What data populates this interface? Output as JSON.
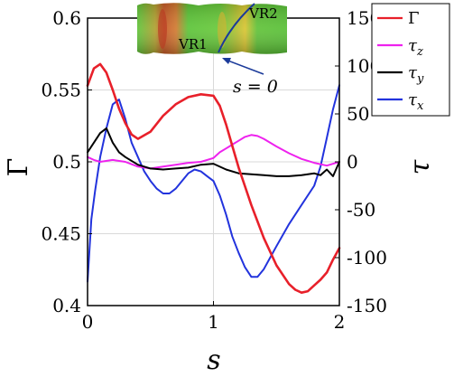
{
  "chart_data": {
    "type": "line",
    "xlabel": "s",
    "ylabel_left": "Γ",
    "ylabel_right": "τ",
    "xlim": [
      0,
      2
    ],
    "ylim_left": [
      0.4,
      0.6
    ],
    "ylim_right": [
      -150,
      150
    ],
    "grid": true,
    "x_ticks": [
      "0",
      "1",
      "2"
    ],
    "y_left_ticks": [
      "0.4",
      "0.45",
      "0.5",
      "0.55",
      "0.6"
    ],
    "y_right_ticks": [
      "150",
      "100",
      "50",
      "0",
      "-50",
      "-100",
      "-150"
    ],
    "legend": {
      "position": "top-right-outside",
      "entries": [
        {
          "label": "Γ",
          "color": "#e8202a"
        },
        {
          "label": "τz",
          "color": "#ee22ee"
        },
        {
          "label": "τy",
          "color": "#000000"
        },
        {
          "label": "τx",
          "color": "#2233dd"
        }
      ]
    },
    "series": [
      {
        "name": "Γ",
        "axis": "left",
        "color": "#e8202a",
        "x": [
          0,
          0.05,
          0.1,
          0.15,
          0.2,
          0.25,
          0.3,
          0.35,
          0.4,
          0.5,
          0.6,
          0.7,
          0.8,
          0.9,
          1.0,
          1.05,
          1.1,
          1.15,
          1.2,
          1.25,
          1.3,
          1.4,
          1.5,
          1.6,
          1.65,
          1.7,
          1.75,
          1.8,
          1.85,
          1.9,
          1.95,
          2.0
        ],
        "y": [
          0.553,
          0.565,
          0.568,
          0.562,
          0.55,
          0.537,
          0.527,
          0.519,
          0.516,
          0.521,
          0.532,
          0.54,
          0.545,
          0.547,
          0.546,
          0.539,
          0.526,
          0.511,
          0.496,
          0.483,
          0.47,
          0.447,
          0.428,
          0.415,
          0.411,
          0.409,
          0.41,
          0.414,
          0.418,
          0.423,
          0.432,
          0.44
        ]
      },
      {
        "name": "τz",
        "axis": "right",
        "color": "#ee22ee",
        "x": [
          0,
          0.05,
          0.1,
          0.2,
          0.3,
          0.4,
          0.5,
          0.6,
          0.7,
          0.8,
          0.9,
          1.0,
          1.05,
          1.1,
          1.15,
          1.2,
          1.25,
          1.3,
          1.35,
          1.4,
          1.5,
          1.6,
          1.7,
          1.8,
          1.9,
          2.0
        ],
        "y": [
          5,
          2,
          0,
          2,
          0,
          -5,
          -7,
          -5,
          -3,
          -1,
          0,
          4,
          10,
          14,
          18,
          22,
          26,
          28,
          27,
          24,
          16,
          9,
          3,
          -1,
          -4,
          0
        ]
      },
      {
        "name": "τy",
        "axis": "right",
        "color": "#000000",
        "x": [
          0,
          0.05,
          0.1,
          0.15,
          0.2,
          0.25,
          0.3,
          0.4,
          0.5,
          0.6,
          0.7,
          0.8,
          0.9,
          1.0,
          1.1,
          1.2,
          1.3,
          1.4,
          1.5,
          1.6,
          1.7,
          1.8,
          1.85,
          1.9,
          1.95,
          2.0
        ],
        "y": [
          10,
          20,
          30,
          35,
          20,
          10,
          5,
          -3,
          -7,
          -8,
          -7,
          -6,
          -3,
          -2,
          -8,
          -12,
          -13,
          -14,
          -15,
          -15,
          -14,
          -12,
          -14,
          -8,
          -15,
          0
        ]
      },
      {
        "name": "τx",
        "axis": "right",
        "color": "#2233dd",
        "x": [
          0,
          0.03,
          0.06,
          0.1,
          0.15,
          0.2,
          0.25,
          0.3,
          0.35,
          0.4,
          0.45,
          0.5,
          0.55,
          0.6,
          0.65,
          0.7,
          0.75,
          0.8,
          0.85,
          0.9,
          0.95,
          1.0,
          1.05,
          1.1,
          1.15,
          1.2,
          1.25,
          1.3,
          1.35,
          1.4,
          1.45,
          1.5,
          1.6,
          1.7,
          1.8,
          1.85,
          1.9,
          1.95,
          2.0
        ],
        "y": [
          -125,
          -60,
          -30,
          5,
          35,
          60,
          65,
          45,
          20,
          5,
          -10,
          -20,
          -28,
          -33,
          -33,
          -28,
          -20,
          -12,
          -8,
          -10,
          -15,
          -20,
          -35,
          -55,
          -78,
          -95,
          -110,
          -120,
          -120,
          -112,
          -100,
          -88,
          -65,
          -45,
          -25,
          -5,
          25,
          55,
          80
        ]
      }
    ]
  },
  "inset": {
    "labels": {
      "vr1": "VR1",
      "vr2": "VR2",
      "arrow": "s = 0"
    }
  }
}
